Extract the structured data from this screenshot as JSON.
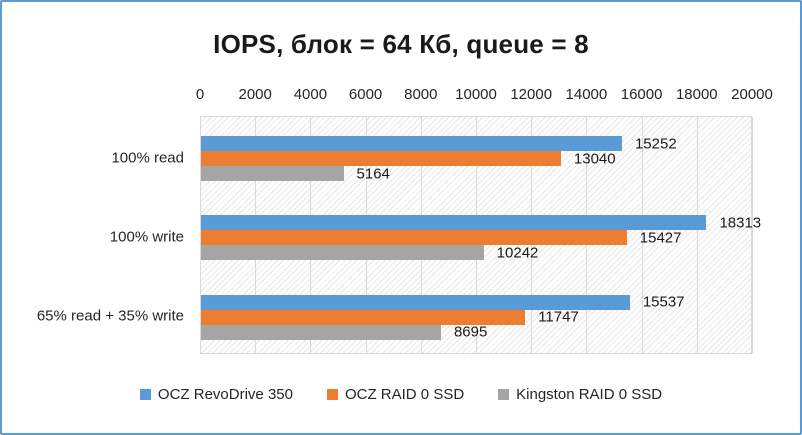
{
  "title": "IOPS, блок = 64 Кб, queue = 8",
  "frame": {
    "border_color": "#5B9BD5",
    "background": "#FFFFFF"
  },
  "plot_style": {
    "gridline_color": "#D9D9D9",
    "plot_border_color": "#D9D9D9",
    "hatch_line_color": "#E7E7E7"
  },
  "chart_data": {
    "type": "bar",
    "orientation": "horizontal",
    "title": "IOPS, блок = 64 Кб, queue = 8",
    "categories": [
      "100% read",
      "100% write",
      "65% read + 35% write"
    ],
    "series": [
      {
        "name": "OCZ RevoDrive 350",
        "color": "#5B9BD5",
        "values": [
          15252,
          18313,
          15537
        ]
      },
      {
        "name": "OCZ RAID 0 SSD",
        "color": "#ED7D31",
        "values": [
          13040,
          15427,
          11747
        ]
      },
      {
        "name": "Kingston RAID 0 SSD",
        "color": "#A5A5A5",
        "values": [
          5164,
          10242,
          8695
        ]
      }
    ],
    "xlim": [
      0,
      20000
    ],
    "x_ticks": [
      0,
      2000,
      4000,
      6000,
      8000,
      10000,
      12000,
      14000,
      16000,
      18000,
      20000
    ],
    "grid": true,
    "data_labels": true,
    "legend_position": "bottom"
  }
}
